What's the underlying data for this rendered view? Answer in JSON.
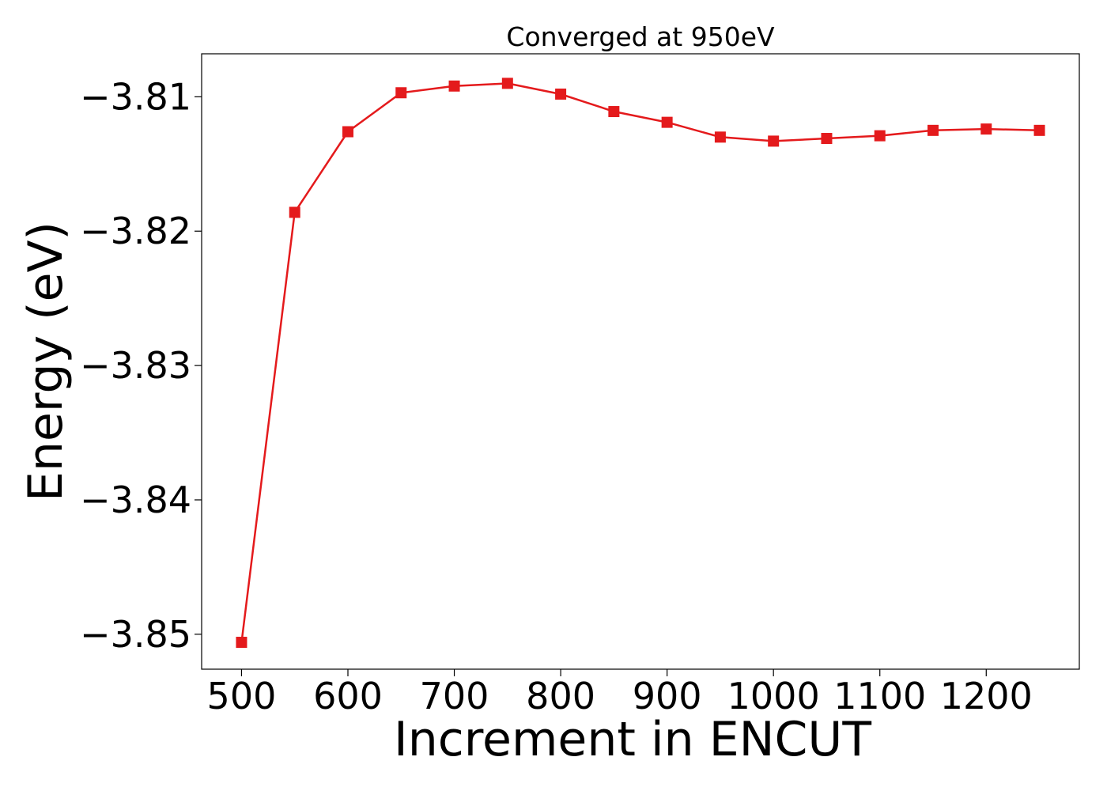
{
  "chart_data": {
    "type": "line",
    "title": "Converged at 950eV",
    "xlabel": "Increment in ENCUT",
    "ylabel": "Energy (eV)",
    "x": [
      500,
      550,
      600,
      650,
      700,
      750,
      800,
      850,
      900,
      950,
      1000,
      1050,
      1100,
      1150,
      1200,
      1250
    ],
    "series": [
      {
        "values": [
          -3.8506,
          -3.8186,
          -3.8126,
          -3.8097,
          -3.8092,
          -3.809,
          -3.8098,
          -3.8111,
          -3.8119,
          -3.813,
          -3.8133,
          -3.8131,
          -3.8129,
          -3.8125,
          -3.8124,
          -3.8125
        ],
        "color": "#e41a1c",
        "marker": "square"
      }
    ],
    "xticks": [
      500,
      600,
      700,
      800,
      900,
      1000,
      1100,
      1200
    ],
    "xtick_labels": [
      "500",
      "600",
      "700",
      "800",
      "900",
      "1000",
      "1100",
      "1200"
    ],
    "yticks": [
      -3.81,
      -3.82,
      -3.83,
      -3.84,
      -3.85
    ],
    "ytick_labels": [
      "−3.81",
      "−3.82",
      "−3.83",
      "−3.84",
      "−3.85"
    ],
    "xlim": [
      462.5,
      1287.5
    ],
    "ylim": [
      -3.8526,
      -3.8068
    ],
    "grid": false,
    "legend": "none"
  }
}
